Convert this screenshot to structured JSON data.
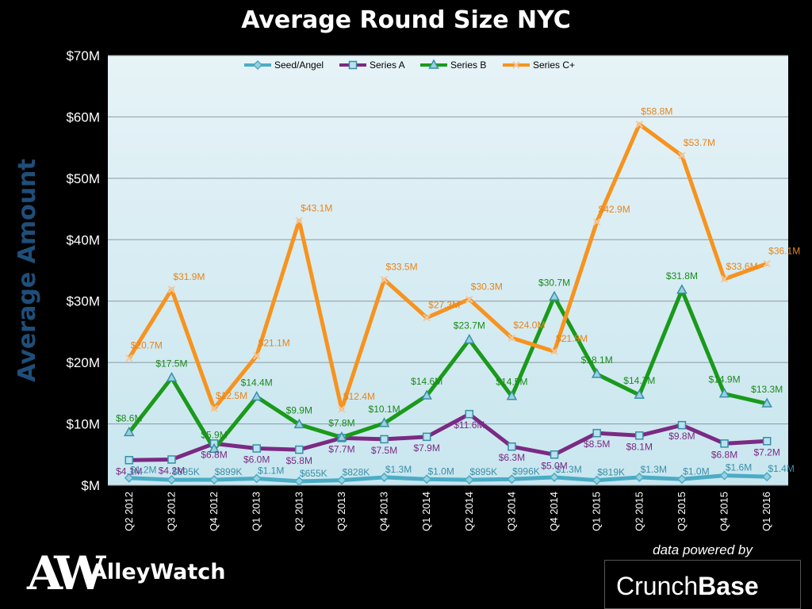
{
  "chart_data": {
    "type": "line",
    "title": "Average Round Size NYC",
    "ylabel": "Average  Amount",
    "xlabel": "",
    "ylim": [
      0,
      70
    ],
    "yunit": "millions USD",
    "yticks": [
      "$M",
      "$10M",
      "$20M",
      "$30M",
      "$40M",
      "$50M",
      "$60M",
      "$70M"
    ],
    "grid": true,
    "legend": "top-center",
    "categories": [
      "Q2 2012",
      "Q3 2012",
      "Q4 2012",
      "Q1 2013",
      "Q2 2013",
      "Q3 2013",
      "Q4 2013",
      "Q1 2014",
      "Q2 2014",
      "Q3 2014",
      "Q4 2014",
      "Q1 2015",
      "Q2 2015",
      "Q3 2015",
      "Q4 2015",
      "Q1 2016"
    ],
    "series": [
      {
        "name": "Seed/Angel",
        "color": "#4bacc6",
        "marker": "diamond",
        "values": [
          1.2,
          0.895,
          0.899,
          1.1,
          0.655,
          0.828,
          1.3,
          1.0,
          0.895,
          0.996,
          1.3,
          0.819,
          1.3,
          1.0,
          1.6,
          1.4
        ],
        "labels": [
          "$1.2M",
          "$895K",
          "$899K",
          "$1.1M",
          "$655K",
          "$828K",
          "$1.3M",
          "$1.0M",
          "$895K",
          "$996K",
          "$1.3M",
          "$819K",
          "$1.3M",
          "$1.0M",
          "$1.6M",
          "$1.4M"
        ],
        "label_color": "#3a8fa6"
      },
      {
        "name": "Series A",
        "color": "#7b2a83",
        "marker": "square",
        "values": [
          4.1,
          4.2,
          6.8,
          6.0,
          5.8,
          7.7,
          7.5,
          7.9,
          11.6,
          6.3,
          5.0,
          8.5,
          8.1,
          9.8,
          6.8,
          7.2
        ],
        "labels": [
          "$4.1M",
          "$4.2M",
          "$6.8M",
          "$6.0M",
          "$5.8M",
          "$7.7M",
          "$7.5M",
          "$7.9M",
          "$11.6M",
          "$6.3M",
          "$5.0M",
          "$8.5M",
          "$8.1M",
          "$9.8M",
          "$6.8M",
          "$7.2M"
        ],
        "label_color": "#7b2a83"
      },
      {
        "name": "Series B",
        "color": "#1a9a1a",
        "marker": "triangle",
        "values": [
          8.6,
          17.5,
          5.9,
          14.4,
          9.9,
          7.8,
          10.1,
          14.6,
          23.7,
          14.5,
          30.7,
          18.1,
          14.7,
          31.8,
          14.9,
          13.3
        ],
        "labels": [
          "$8.6M",
          "$17.5M",
          "$5.9M",
          "$14.4M",
          "$9.9M",
          "$7.8M",
          "$10.1M",
          "$14.6M",
          "$23.7M",
          "$14.5M",
          "$30.7M",
          "$18.1M",
          "$14.7M",
          "$31.8M",
          "$14.9M",
          "$13.3M"
        ],
        "label_color": "#1a8a1a"
      },
      {
        "name": "Series C+",
        "color": "#f7931e",
        "marker": "x",
        "values": [
          20.7,
          31.9,
          12.5,
          21.1,
          43.1,
          12.4,
          33.5,
          27.3,
          30.3,
          24.0,
          21.8,
          42.9,
          58.8,
          53.7,
          33.6,
          36.1
        ],
        "labels": [
          "$20.7M",
          "$31.9M",
          "$12.5M",
          "$21.1M",
          "$43.1M",
          "$12.4M",
          "$33.5M",
          "$27.3M",
          "$30.3M",
          "$24.0M",
          "$21.8M",
          "$42.9M",
          "$58.8M",
          "$53.7M",
          "$33.6M",
          "$36.1M"
        ],
        "label_color": "#e8841a"
      }
    ]
  },
  "branding": {
    "logo_mark": "AW",
    "logo_text": "AlleyWatch",
    "powered_by": "data powered by",
    "crunch": "Crunch",
    "base": "Base"
  }
}
